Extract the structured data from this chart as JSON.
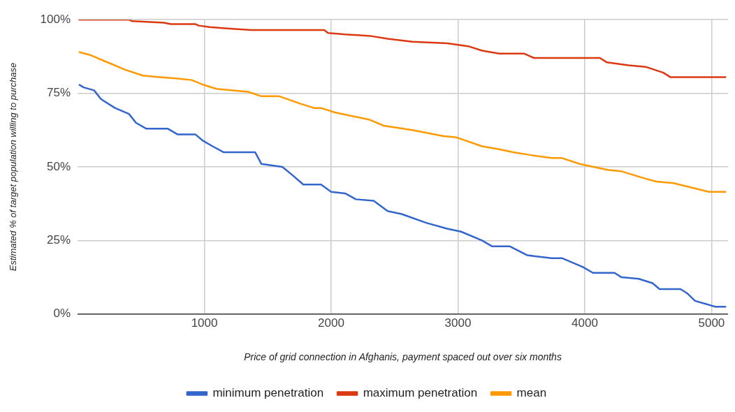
{
  "chart_data": {
    "type": "line",
    "xlabel": "Price of grid connection in Afghanis, payment spaced out over six months",
    "ylabel": "Estimated % of target population willing to purchase",
    "xlim": [
      0,
      5130
    ],
    "xticks": [
      1000,
      2000,
      3000,
      4000,
      5000
    ],
    "ylim": [
      0,
      100
    ],
    "yticks": [
      {
        "value": 0,
        "label": "0%"
      },
      {
        "value": 25,
        "label": "25%"
      },
      {
        "value": 50,
        "label": "50%"
      },
      {
        "value": 75,
        "label": "75%"
      },
      {
        "value": 100,
        "label": "100%"
      }
    ],
    "grid": true,
    "legend": "bottom",
    "marker": "none",
    "line_style": "solid",
    "series": [
      {
        "name": "minimum penetration",
        "color": "#3366cc",
        "x": [
          10,
          47,
          130,
          185,
          295,
          405,
          460,
          540,
          710,
          790,
          930,
          985,
          1065,
          1150,
          1400,
          1450,
          1615,
          1700,
          1780,
          1920,
          2000,
          2110,
          2195,
          2335,
          2445,
          2555,
          2750,
          2915,
          3025,
          3190,
          3270,
          3410,
          3545,
          3740,
          3820,
          3985,
          4065,
          4235,
          4290,
          4425,
          4535,
          4590,
          4755,
          4810,
          4870,
          4950,
          5030,
          5115
        ],
        "values": [
          78,
          77,
          76,
          73,
          70,
          68,
          65,
          63,
          63,
          61,
          61,
          59,
          57,
          55,
          55,
          51,
          50,
          47,
          44,
          44,
          41.5,
          41,
          39,
          38.5,
          35,
          34,
          31,
          29,
          28,
          25,
          23,
          23,
          20,
          19,
          19,
          16,
          14,
          14,
          12.5,
          12,
          10.5,
          8.5,
          8.5,
          7,
          4.5,
          3.5,
          2.5,
          2.5
        ]
      },
      {
        "name": "maximum penetration",
        "color": "#dc3912",
        "x": [
          10,
          405,
          430,
          680,
          735,
          930,
          955,
          1040,
          1180,
          1370,
          1945,
          1975,
          2110,
          2305,
          2445,
          2640,
          2915,
          3080,
          3190,
          3325,
          3520,
          3600,
          4120,
          4175,
          4345,
          4480,
          4620,
          4675,
          5115
        ],
        "values": [
          100,
          100,
          99.5,
          99,
          98.5,
          98.5,
          98,
          97.5,
          97,
          96.5,
          96.5,
          95.5,
          95,
          94.5,
          93.5,
          92.5,
          92,
          91,
          89.5,
          88.5,
          88.5,
          87,
          87,
          85.5,
          84.5,
          84,
          82,
          80.5,
          80.5
        ]
      },
      {
        "name": "mean",
        "color": "#ff9900",
        "x": [
          10,
          100,
          210,
          375,
          515,
          650,
          790,
          900,
          985,
          1095,
          1345,
          1450,
          1590,
          1755,
          1865,
          1920,
          2030,
          2305,
          2415,
          2640,
          2880,
          2990,
          3190,
          3325,
          3435,
          3575,
          3740,
          3820,
          3960,
          4070,
          4180,
          4290,
          4480,
          4565,
          4700,
          4840,
          4980,
          5115
        ],
        "values": [
          89,
          88,
          86,
          83,
          81,
          80.5,
          80,
          79.5,
          78,
          76.5,
          75.5,
          74,
          74,
          71.5,
          70,
          70,
          68.5,
          66,
          64,
          62.5,
          60.5,
          60,
          57,
          56,
          55,
          54,
          53,
          53,
          51,
          50,
          49,
          48.5,
          46,
          45,
          44.5,
          43,
          41.5,
          41.5
        ]
      }
    ]
  }
}
